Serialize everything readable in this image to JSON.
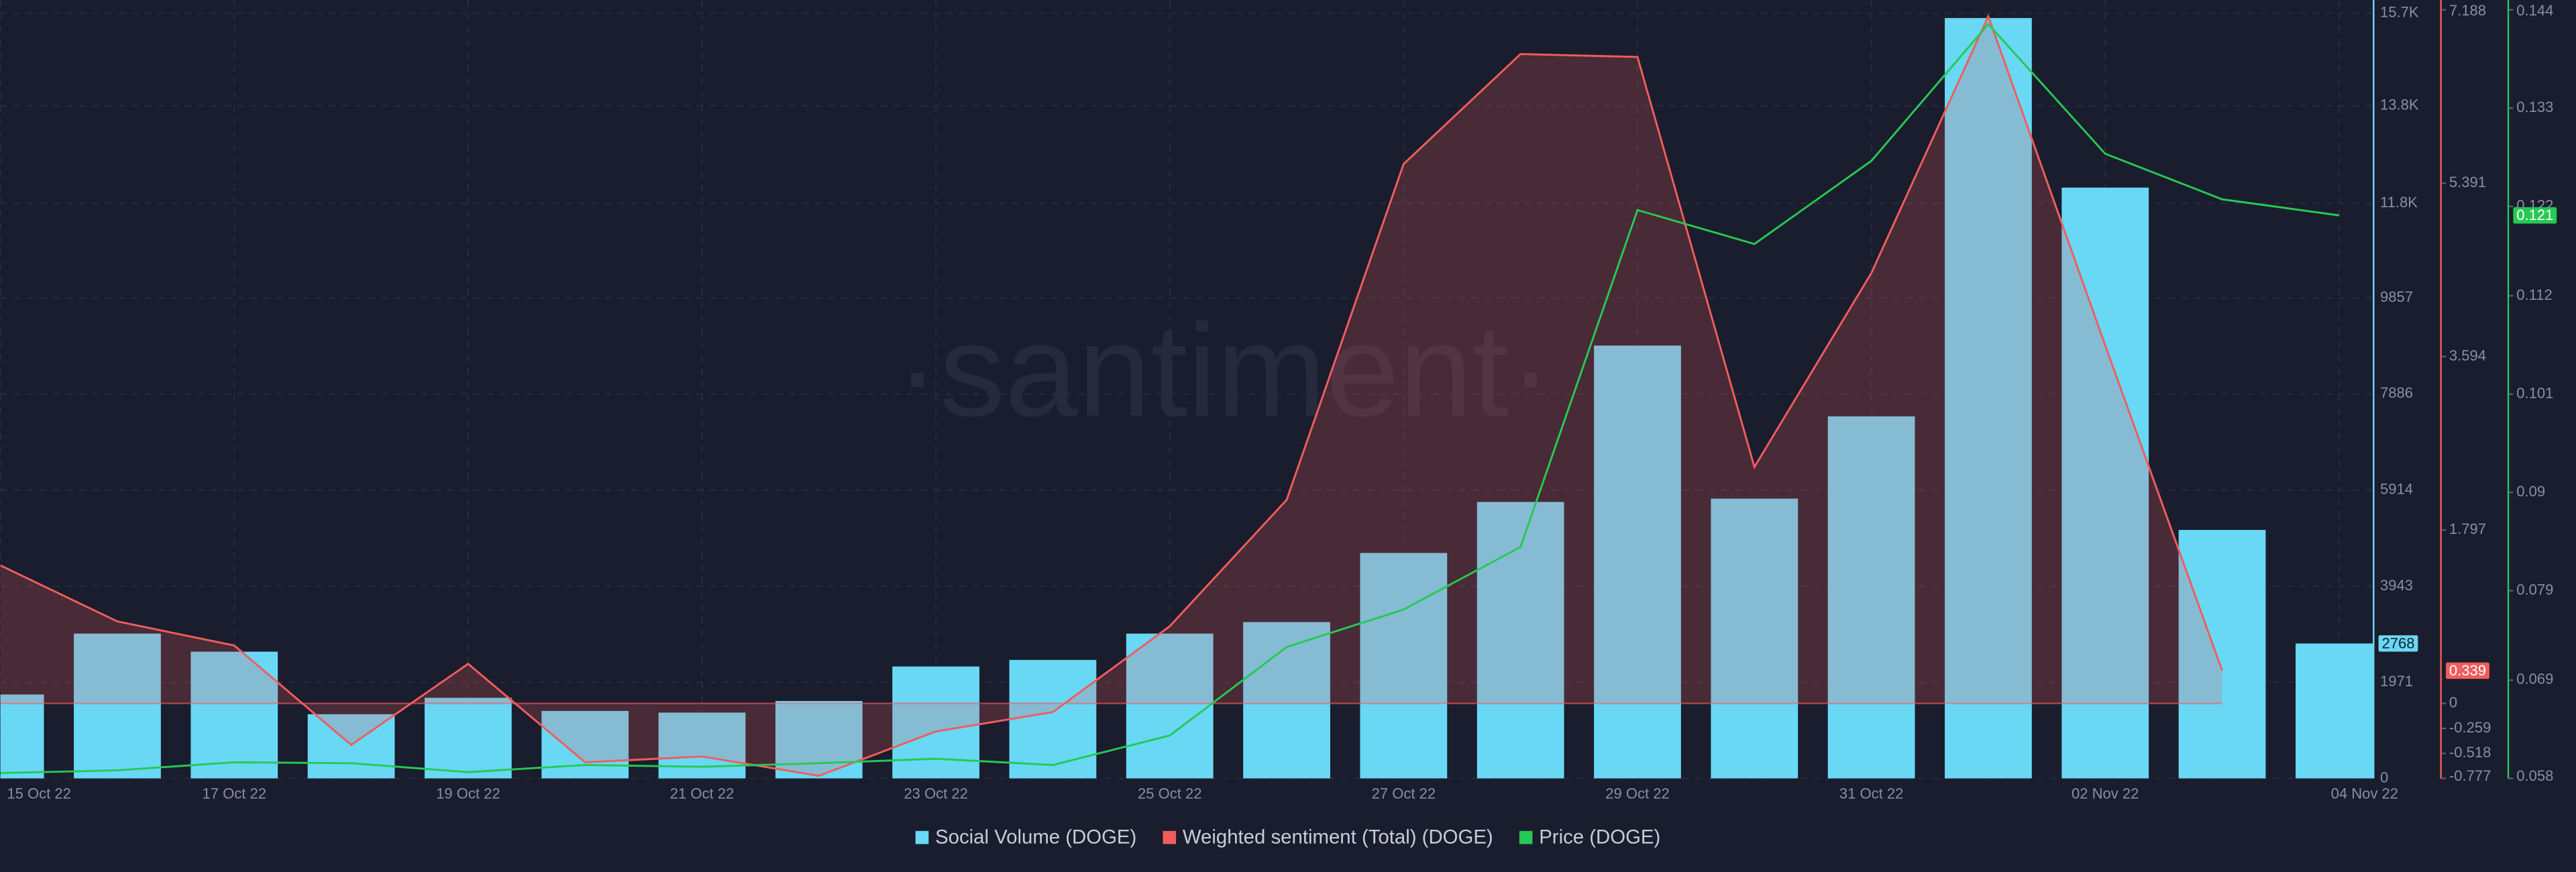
{
  "chart_data": {
    "type": "bar",
    "watermark": "·santiment·",
    "categories": [
      "15 Oct 22",
      null,
      "17 Oct 22",
      null,
      "19 Oct 22",
      null,
      "21 Oct 22",
      null,
      "23 Oct 22",
      null,
      "25 Oct 22",
      null,
      "27 Oct 22",
      null,
      "29 Oct 22",
      null,
      "31 Oct 22",
      null,
      "02 Nov 22",
      null,
      "04 Nov 22"
    ],
    "series": [
      {
        "name": "Social Volume (DOGE)",
        "color": "#68d8f5",
        "type": "bar",
        "axis": "y",
        "values": [
          1722,
          2971,
          2600,
          1317,
          1654,
          1384,
          1350,
          1587,
          2296,
          2431,
          2971,
          3207,
          4625,
          5672,
          8880,
          5740,
          7428,
          15600,
          12121,
          5098,
          2768
        ]
      },
      {
        "name": "Weighted sentiment (Total) (DOGE)",
        "color": "#f05d5d",
        "type": "area",
        "axis": "y2",
        "values": [
          1.43,
          0.85,
          0.6,
          -0.43,
          0.41,
          -0.61,
          -0.55,
          -0.75,
          -0.29,
          -0.09,
          0.8,
          2.11,
          5.59,
          6.73,
          6.7,
          2.45,
          4.46,
          7.12,
          3.71,
          0.339,
          null
        ]
      },
      {
        "name": "Price (DOGE)",
        "color": "#26c953",
        "type": "line",
        "axis": "y3",
        "values": [
          0.0586,
          0.0589,
          0.0598,
          0.0597,
          0.0587,
          0.0595,
          0.0593,
          0.0597,
          0.0602,
          0.0595,
          0.0628,
          0.0727,
          0.0769,
          0.0839,
          0.1216,
          0.1178,
          0.1271,
          0.1424,
          0.1279,
          0.1228,
          0.121
        ]
      }
    ],
    "ylim": [
      0,
      15768
    ],
    "yticks": [
      0,
      1971,
      3943,
      5914,
      7886,
      9857,
      {
        "value": 11800,
        "label": "11.8K"
      },
      {
        "value": 13800,
        "label": "13.8K"
      },
      {
        "value": 15700,
        "label": "15.7K"
      }
    ],
    "y2lim": [
      -0.777,
      7.188
    ],
    "y2ticks": [
      -0.777,
      -0.518,
      -0.259,
      0,
      1.797,
      3.594,
      5.391,
      7.188
    ],
    "y3lim": [
      0.058,
      0.144
    ],
    "y3ticks": [
      0.058,
      0.069,
      0.079,
      0.09,
      0.101,
      0.112,
      0.122,
      0.133,
      0.144
    ],
    "grid": true
  }
}
